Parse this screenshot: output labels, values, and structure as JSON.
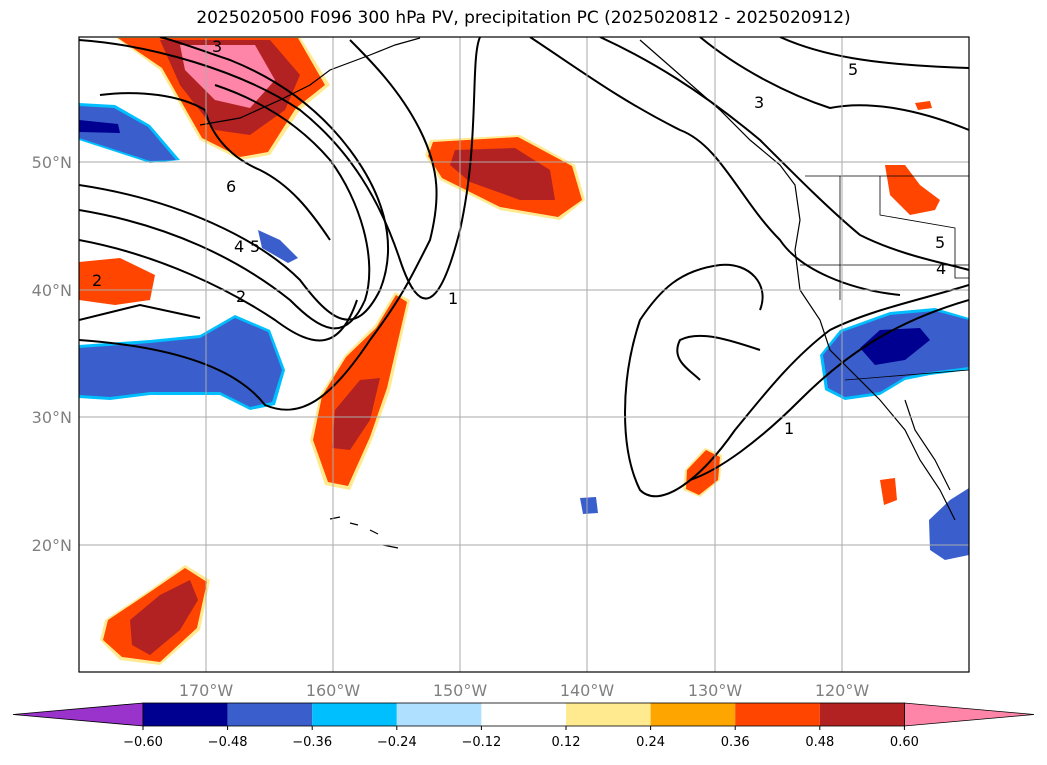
{
  "title": "2025020500 F096 300 hPa PV, precipitation PC (2025020812 - 2025020912)",
  "lat_labels": [
    "50°N",
    "40°N",
    "30°N",
    "20°N"
  ],
  "lon_labels": [
    "170°W",
    "160°W",
    "150°W",
    "140°W",
    "130°W",
    "120°W"
  ],
  "contour_labels": [
    "3",
    "6",
    "4",
    "5",
    "2",
    "2",
    "1",
    "3",
    "5",
    "5",
    "4",
    "1"
  ],
  "colorbar": {
    "ticks": [
      "−0.60",
      "−0.48",
      "−0.36",
      "−0.24",
      "−0.12",
      "0.12",
      "0.24",
      "0.36",
      "0.48",
      "0.60"
    ],
    "colors": [
      "#9933cc",
      "#000090",
      "#3a5fcd",
      "#00bfff",
      "#b0e0ff",
      "#ffffff",
      "#ffea90",
      "#ffa500",
      "#ff4500",
      "#b22222",
      "#ff85a8"
    ]
  }
}
